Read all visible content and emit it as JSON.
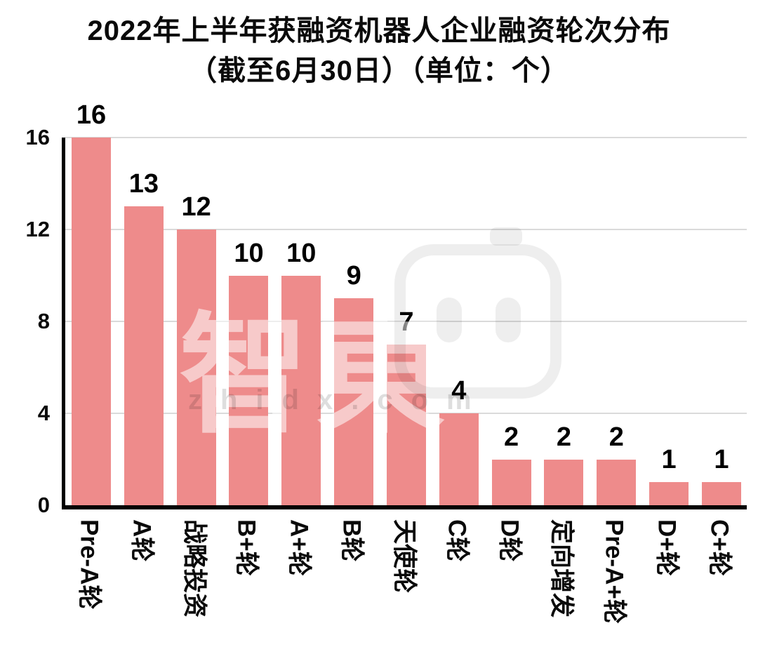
{
  "title": {
    "line1": "2022年上半年获融资机器人企业融资轮次分布",
    "line2": "（截至6月30日）（单位：个）"
  },
  "watermark": {
    "chars": "智東",
    "text": "zhidx.com"
  },
  "chart_data": {
    "type": "bar",
    "title": "2022年上半年获融资机器人企业融资轮次分布（截至6月30日）（单位：个）",
    "categories": [
      "Pre-A轮",
      "A轮",
      "战略投资",
      "B+轮",
      "A+轮",
      "B轮",
      "天使轮",
      "C轮",
      "D轮",
      "定向增发",
      "Pre-A+轮",
      "D+轮",
      "C+轮"
    ],
    "values": [
      16,
      13,
      12,
      10,
      10,
      9,
      7,
      4,
      2,
      2,
      2,
      1,
      1
    ],
    "xlabel": "",
    "ylabel": "",
    "ylim": [
      0,
      16
    ],
    "yticks": [
      0,
      4,
      8,
      12,
      16
    ],
    "grid": true,
    "legend": "none",
    "bar_color": "#ee8b8b",
    "grid_color": "#dadada",
    "axis_color": "#000000",
    "label_color": "#000000"
  }
}
